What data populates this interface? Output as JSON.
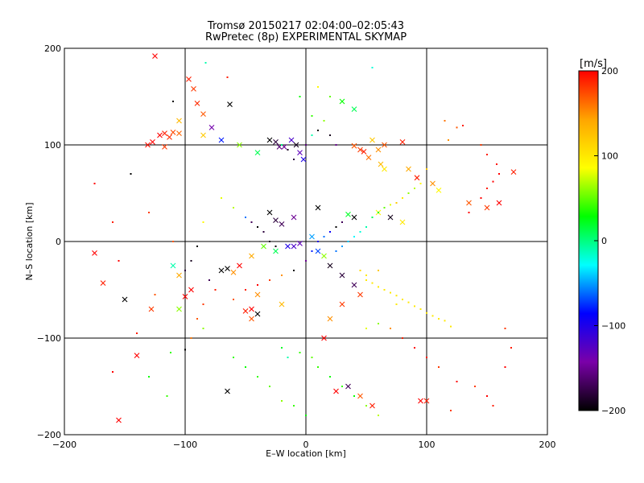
{
  "chart_data": {
    "type": "scatter",
    "title": "Tromsø 20150217 02:04:00–02:05:43",
    "subtitle": "RwPretec (8p) EXPERIMENTAL SKYMAP",
    "xlabel": "E–W location [km]",
    "ylabel": "N–S location [km]",
    "xlim": [
      -200,
      200
    ],
    "ylim": [
      -200,
      200
    ],
    "xticks": [
      -200,
      -100,
      0,
      100,
      200
    ],
    "yticks": [
      -200,
      -100,
      0,
      100,
      200
    ],
    "xtick_labels": [
      "−200",
      "−100",
      "0",
      "100",
      "200"
    ],
    "ytick_labels": [
      "200",
      "100",
      "0",
      "−100",
      "−200"
    ],
    "grid_lines": [
      -100,
      0,
      100
    ],
    "colorbar": {
      "label": "[m/s]",
      "range": [
        -200,
        200
      ],
      "ticks": [
        200,
        100,
        0,
        -100,
        -200
      ],
      "tick_labels": [
        "200",
        "100",
        "0",
        "−100",
        "−200"
      ],
      "placement": "right",
      "colors": [
        "#000000",
        "#7a00a8",
        "#0000ff",
        "#00ffff",
        "#00ff00",
        "#ffff00",
        "#ffa500",
        "#ff0000"
      ]
    },
    "markers": {
      "cross": "×",
      "dot": "·"
    },
    "series": [
      {
        "marker": "cross",
        "points": [
          [
            -125,
            192,
            200
          ],
          [
            -97,
            168,
            190
          ],
          [
            -93,
            158,
            180
          ],
          [
            -90,
            143,
            185
          ],
          [
            -85,
            132,
            170
          ],
          [
            -121,
            110,
            200
          ],
          [
            -117,
            112,
            190
          ],
          [
            -113,
            108,
            185
          ],
          [
            -110,
            113,
            175
          ],
          [
            -105,
            112,
            165
          ],
          [
            -127,
            103,
            200
          ],
          [
            -131,
            100,
            195
          ],
          [
            -117,
            98,
            180
          ],
          [
            -105,
            125,
            130
          ],
          [
            -85,
            110,
            120
          ],
          [
            -78,
            118,
            -140
          ],
          [
            -70,
            105,
            -80
          ],
          [
            -63,
            142,
            -200
          ],
          [
            -55,
            100,
            60
          ],
          [
            -40,
            92,
            10
          ],
          [
            -30,
            105,
            -200
          ],
          [
            -25,
            103,
            -180
          ],
          [
            -22,
            98,
            -160
          ],
          [
            -18,
            98,
            -150
          ],
          [
            -12,
            105,
            -120
          ],
          [
            -8,
            100,
            -190
          ],
          [
            -5,
            92,
            -130
          ],
          [
            -2,
            85,
            -100
          ],
          [
            40,
            99,
            170
          ],
          [
            45,
            95,
            180
          ],
          [
            48,
            93,
            190
          ],
          [
            52,
            87,
            160
          ],
          [
            60,
            95,
            150
          ],
          [
            62,
            80,
            130
          ],
          [
            65,
            75,
            100
          ],
          [
            30,
            145,
            30
          ],
          [
            40,
            137,
            10
          ],
          [
            55,
            105,
            120
          ],
          [
            65,
            100,
            170
          ],
          [
            80,
            103,
            190
          ],
          [
            85,
            75,
            140
          ],
          [
            92,
            66,
            190
          ],
          [
            105,
            60,
            150
          ],
          [
            110,
            53,
            90
          ],
          [
            135,
            40,
            170
          ],
          [
            150,
            35,
            180
          ],
          [
            160,
            40,
            200
          ],
          [
            172,
            72,
            190
          ],
          [
            -175,
            -12,
            200
          ],
          [
            -168,
            -43,
            190
          ],
          [
            -140,
            -118,
            200
          ],
          [
            -150,
            -60,
            -200
          ],
          [
            -128,
            -70,
            180
          ],
          [
            -105,
            -70,
            60
          ],
          [
            -100,
            -57,
            200
          ],
          [
            -110,
            -25,
            -10
          ],
          [
            -95,
            -50,
            200
          ],
          [
            -70,
            -30,
            -200
          ],
          [
            -65,
            -28,
            -200
          ],
          [
            -60,
            -32,
            150
          ],
          [
            -55,
            -25,
            200
          ],
          [
            -45,
            -15,
            140
          ],
          [
            -35,
            -5,
            50
          ],
          [
            -25,
            -10,
            10
          ],
          [
            -15,
            -5,
            -100
          ],
          [
            -10,
            -5,
            -120
          ],
          [
            -5,
            -2,
            -130
          ],
          [
            5,
            5,
            -50
          ],
          [
            10,
            -10,
            -70
          ],
          [
            15,
            -15,
            60
          ],
          [
            20,
            -25,
            -190
          ],
          [
            30,
            -35,
            -180
          ],
          [
            40,
            -45,
            -170
          ],
          [
            45,
            -55,
            180
          ],
          [
            -30,
            30,
            -200
          ],
          [
            -25,
            22,
            -180
          ],
          [
            -20,
            18,
            -170
          ],
          [
            -10,
            25,
            -150
          ],
          [
            10,
            35,
            -200
          ],
          [
            35,
            28,
            20
          ],
          [
            40,
            25,
            -200
          ],
          [
            60,
            30,
            90
          ],
          [
            70,
            25,
            -190
          ],
          [
            80,
            20,
            100
          ],
          [
            30,
            -65,
            180
          ],
          [
            20,
            -80,
            150
          ],
          [
            15,
            -100,
            200
          ],
          [
            25,
            -155,
            200
          ],
          [
            45,
            -160,
            170
          ],
          [
            55,
            -170,
            190
          ],
          [
            35,
            -150,
            -170
          ],
          [
            95,
            -165,
            200
          ],
          [
            100,
            -165,
            190
          ],
          [
            -40,
            -75,
            -200
          ],
          [
            -45,
            -70,
            200
          ],
          [
            -50,
            -72,
            190
          ],
          [
            -45,
            -80,
            170
          ],
          [
            -65,
            -155,
            -200
          ],
          [
            -155,
            -185,
            200
          ],
          [
            -105,
            -35,
            140
          ],
          [
            -40,
            -55,
            150
          ],
          [
            -20,
            -65,
            130
          ]
        ]
      },
      {
        "marker": "dot",
        "points": [
          [
            -83,
            185,
            -10
          ],
          [
            -110,
            145,
            -200
          ],
          [
            -145,
            70,
            -200
          ],
          [
            -110,
            0,
            170
          ],
          [
            -130,
            -140,
            30
          ],
          [
            -112,
            -115,
            40
          ],
          [
            -85,
            -90,
            60
          ],
          [
            -60,
            -60,
            170
          ],
          [
            -50,
            -50,
            190
          ],
          [
            -40,
            -45,
            200
          ],
          [
            -30,
            -40,
            180
          ],
          [
            -20,
            -35,
            150
          ],
          [
            -10,
            -30,
            -200
          ],
          [
            0,
            -20,
            -150
          ],
          [
            5,
            -10,
            -80
          ],
          [
            10,
            0,
            -100
          ],
          [
            15,
            5,
            -60
          ],
          [
            20,
            10,
            -90
          ],
          [
            25,
            15,
            -200
          ],
          [
            30,
            20,
            -170
          ],
          [
            60,
            -30,
            120
          ],
          [
            50,
            -35,
            100
          ],
          [
            45,
            -30,
            110
          ],
          [
            50,
            -40,
            100
          ],
          [
            55,
            -43,
            100
          ],
          [
            60,
            -47,
            100
          ],
          [
            65,
            -50,
            100
          ],
          [
            70,
            -53,
            100
          ],
          [
            75,
            -56,
            100
          ],
          [
            80,
            -60,
            100
          ],
          [
            85,
            -63,
            100
          ],
          [
            90,
            -67,
            100
          ],
          [
            95,
            -70,
            100
          ],
          [
            100,
            -74,
            100
          ],
          [
            105,
            -77,
            100
          ],
          [
            110,
            -80,
            100
          ],
          [
            115,
            -82,
            100
          ],
          [
            120,
            -88,
            100
          ],
          [
            75,
            -65,
            100
          ],
          [
            50,
            -90,
            80
          ],
          [
            60,
            -85,
            60
          ],
          [
            70,
            -90,
            150
          ],
          [
            80,
            -100,
            190
          ],
          [
            90,
            -110,
            200
          ],
          [
            100,
            -120,
            190
          ],
          [
            110,
            -130,
            180
          ],
          [
            125,
            -145,
            200
          ],
          [
            120,
            -175,
            180
          ],
          [
            135,
            30,
            200
          ],
          [
            145,
            45,
            200
          ],
          [
            150,
            55,
            190
          ],
          [
            155,
            62,
            200
          ],
          [
            160,
            70,
            200
          ],
          [
            158,
            80,
            195
          ],
          [
            150,
            90,
            190
          ],
          [
            145,
            100,
            180
          ],
          [
            130,
            120,
            190
          ],
          [
            125,
            118,
            170
          ],
          [
            115,
            125,
            160
          ],
          [
            118,
            105,
            150
          ],
          [
            100,
            75,
            120
          ],
          [
            95,
            60,
            90
          ],
          [
            90,
            55,
            70
          ],
          [
            85,
            50,
            60
          ],
          [
            80,
            45,
            100
          ],
          [
            75,
            40,
            120
          ],
          [
            70,
            38,
            80
          ],
          [
            65,
            35,
            50
          ],
          [
            60,
            30,
            20
          ],
          [
            55,
            25,
            10
          ],
          [
            50,
            15,
            -10
          ],
          [
            45,
            10,
            -20
          ],
          [
            40,
            5,
            -30
          ],
          [
            35,
            0,
            -40
          ],
          [
            30,
            -5,
            -50
          ],
          [
            25,
            -10,
            -60
          ],
          [
            -20,
            100,
            0
          ],
          [
            -15,
            95,
            -190
          ],
          [
            -10,
            85,
            -180
          ],
          [
            0,
            100,
            -160
          ],
          [
            5,
            110,
            -10
          ],
          [
            10,
            115,
            -200
          ],
          [
            20,
            110,
            -190
          ],
          [
            25,
            100,
            -150
          ],
          [
            -25,
            -5,
            -200
          ],
          [
            -30,
            0,
            -190
          ],
          [
            -35,
            10,
            -180
          ],
          [
            -40,
            15,
            -200
          ],
          [
            -45,
            20,
            -170
          ],
          [
            -50,
            25,
            -60
          ],
          [
            -60,
            35,
            70
          ],
          [
            -70,
            45,
            80
          ],
          [
            -85,
            20,
            90
          ],
          [
            -90,
            -5,
            -200
          ],
          [
            -95,
            -20,
            -190
          ],
          [
            -100,
            -30,
            -180
          ],
          [
            -80,
            -40,
            -170
          ],
          [
            -75,
            -50,
            190
          ],
          [
            -85,
            -65,
            180
          ],
          [
            -90,
            -80,
            170
          ],
          [
            -95,
            -100,
            160
          ],
          [
            -100,
            -112,
            -200
          ],
          [
            -115,
            -160,
            40
          ],
          [
            -60,
            -120,
            40
          ],
          [
            -50,
            -130,
            30
          ],
          [
            -40,
            -140,
            40
          ],
          [
            -30,
            -150,
            50
          ],
          [
            -20,
            -165,
            60
          ],
          [
            -10,
            -170,
            40
          ],
          [
            0,
            -180,
            30
          ],
          [
            -15,
            -120,
            -10
          ],
          [
            -20,
            -110,
            20
          ],
          [
            -5,
            -115,
            40
          ],
          [
            5,
            -120,
            50
          ],
          [
            10,
            -130,
            40
          ],
          [
            20,
            -140,
            30
          ],
          [
            30,
            -150,
            40
          ],
          [
            40,
            -160,
            30
          ],
          [
            50,
            -170,
            60
          ],
          [
            60,
            -180,
            70
          ],
          [
            -175,
            60,
            200
          ],
          [
            -160,
            -135,
            200
          ],
          [
            -140,
            -95,
            190
          ],
          [
            -130,
            30,
            180
          ],
          [
            -125,
            -55,
            170
          ],
          [
            -65,
            170,
            190
          ],
          [
            55,
            180,
            -20
          ],
          [
            20,
            150,
            50
          ],
          [
            15,
            125,
            60
          ],
          [
            5,
            130,
            40
          ],
          [
            -5,
            150,
            30
          ],
          [
            10,
            160,
            90
          ],
          [
            150,
            -160,
            200
          ],
          [
            155,
            -170,
            190
          ],
          [
            140,
            -150,
            180
          ],
          [
            165,
            -130,
            200
          ],
          [
            170,
            -110,
            190
          ],
          [
            165,
            -90,
            180
          ],
          [
            -160,
            20,
            190
          ],
          [
            -155,
            -20,
            200
          ]
        ]
      }
    ]
  }
}
